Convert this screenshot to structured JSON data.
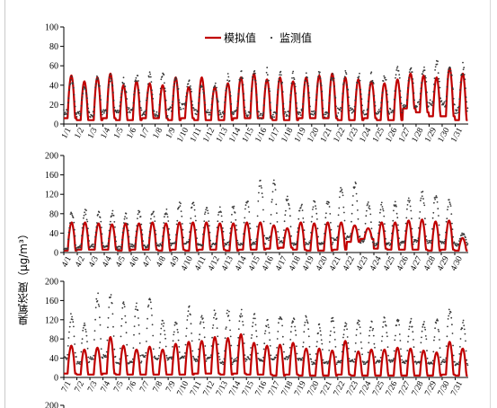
{
  "chart_data": {
    "type": "line",
    "ylabel": "臭氧浓度（μg/m³）",
    "legend": {
      "placement": "top-center",
      "entries": [
        {
          "name": "模拟值",
          "style": "line",
          "color": "#c00000"
        },
        {
          "name": "监测值",
          "style": "dot",
          "color": "#404040"
        }
      ]
    },
    "panels": [
      {
        "ylim": [
          0,
          100
        ],
        "yticks": [
          0,
          20,
          40,
          60,
          80,
          100
        ],
        "categories": [
          "1/1",
          "1/2",
          "1/3",
          "1/4",
          "1/5",
          "1/6",
          "1/7",
          "1/8",
          "1/9",
          "1/10",
          "1/11",
          "1/12",
          "1/13",
          "1/14",
          "1/15",
          "1/16",
          "1/17",
          "1/18",
          "1/19",
          "1/20",
          "1/21",
          "1/22",
          "1/23",
          "1/24",
          "1/25",
          "1/26",
          "1/27",
          "1/28",
          "1/29",
          "1/30",
          "1/31"
        ],
        "series": [
          {
            "name": "模拟值",
            "daily_peak": [
              50,
              44,
              48,
              52,
              40,
              44,
              42,
              40,
              48,
              38,
              48,
              38,
              42,
              48,
              52,
              46,
              48,
              44,
              48,
              50,
              52,
              48,
              46,
              44,
              42,
              46,
              52,
              50,
              48,
              58,
              52
            ],
            "daily_min": [
              6,
              4,
              4,
              6,
              4,
              4,
              6,
              6,
              4,
              6,
              4,
              4,
              4,
              6,
              6,
              6,
              4,
              4,
              6,
              6,
              6,
              4,
              4,
              6,
              4,
              4,
              16,
              12,
              8,
              8,
              4
            ]
          },
          {
            "name": "监测值",
            "daily_peak": [
              50,
              40,
              52,
              52,
              46,
              52,
              52,
              56,
              50,
              44,
              44,
              40,
              52,
              56,
              58,
              56,
              54,
              52,
              52,
              56,
              56,
              54,
              52,
              52,
              50,
              64,
              62,
              60,
              66,
              62,
              62
            ],
            "daily_min": [
              12,
              10,
              10,
              12,
              14,
              14,
              12,
              10,
              16,
              18,
              12,
              12,
              10,
              12,
              10,
              8,
              10,
              10,
              12,
              12,
              10,
              14,
              14,
              12,
              12,
              14,
              20,
              20,
              22,
              20,
              14
            ]
          }
        ]
      },
      {
        "ylim": [
          0,
          200
        ],
        "yticks": [
          0,
          40,
          80,
          120,
          160,
          200
        ],
        "categories": [
          "4/1",
          "4/2",
          "4/3",
          "4/4",
          "4/5",
          "4/6",
          "4/7",
          "4/8",
          "4/9",
          "4/10",
          "4/11",
          "4/12",
          "4/13",
          "4/14",
          "4/15",
          "4/16",
          "4/17",
          "4/18",
          "4/19",
          "4/20",
          "4/21",
          "4/22",
          "4/23",
          "4/24",
          "4/25",
          "4/26",
          "4/27",
          "4/28",
          "4/29",
          "4/30"
        ],
        "series": [
          {
            "name": "模拟值",
            "daily_peak": [
              62,
              62,
              60,
              58,
              60,
              60,
              62,
              60,
              62,
              62,
              62,
              60,
              60,
              62,
              62,
              56,
              50,
              62,
              60,
              62,
              62,
              56,
              50,
              62,
              62,
              66,
              68,
              64,
              66,
              30
            ],
            "daily_min": [
              4,
              6,
              6,
              6,
              4,
              6,
              6,
              4,
              6,
              4,
              6,
              6,
              4,
              6,
              6,
              8,
              10,
              6,
              4,
              4,
              6,
              22,
              28,
              8,
              6,
              6,
              6,
              4,
              6,
              4
            ]
          },
          {
            "name": "监测值",
            "daily_peak": [
              88,
              92,
              86,
              90,
              84,
              88,
              92,
              90,
              108,
              112,
              96,
              96,
              102,
              114,
              158,
              150,
              120,
              104,
              116,
              112,
              140,
              150,
              108,
              104,
              106,
              118,
              130,
              126,
              114,
              40
            ],
            "daily_min": [
              8,
              12,
              14,
              12,
              10,
              14,
              12,
              16,
              18,
              20,
              14,
              16,
              18,
              16,
              20,
              28,
              22,
              18,
              20,
              18,
              28,
              34,
              22,
              16,
              18,
              20,
              24,
              22,
              20,
              16
            ]
          }
        ]
      },
      {
        "ylim": [
          0,
          200
        ],
        "yticks": [
          0,
          40,
          80,
          120,
          160,
          200
        ],
        "categories": [
          "7/1",
          "7/2",
          "7/3",
          "7/4",
          "7/5",
          "7/6",
          "7/7",
          "7/8",
          "7/9",
          "7/10",
          "7/11",
          "7/12",
          "7/13",
          "7/14",
          "7/15",
          "7/16",
          "7/17",
          "7/18",
          "7/19",
          "7/20",
          "7/21",
          "7/22",
          "7/23",
          "7/24",
          "7/25",
          "7/26",
          "7/27",
          "7/28",
          "7/29",
          "7/30",
          "7/31"
        ],
        "series": [
          {
            "name": "模拟值",
            "daily_peak": [
              66,
              58,
              62,
              84,
              66,
              58,
              64,
              58,
              70,
              74,
              76,
              84,
              82,
              90,
              72,
              66,
              68,
              72,
              60,
              60,
              56,
              76,
              54,
              58,
              58,
              62,
              60,
              56,
              52,
              74,
              60
            ],
            "daily_min": [
              8,
              6,
              6,
              8,
              6,
              6,
              6,
              6,
              6,
              6,
              8,
              8,
              6,
              8,
              6,
              6,
              4,
              6,
              4,
              4,
              4,
              6,
              4,
              4,
              4,
              4,
              4,
              4,
              4,
              6,
              4
            ]
          },
          {
            "name": "监测值",
            "daily_peak": [
              136,
              120,
              178,
              182,
              160,
              160,
              176,
              120,
              124,
              150,
              132,
              140,
              144,
              146,
              132,
              122,
              138,
              128,
              132,
              110,
              130,
              116,
              126,
              120,
              130,
              128,
              126,
              120,
              128,
              150,
              120
            ],
            "daily_min": [
              40,
              30,
              40,
              44,
              30,
              32,
              44,
              38,
              40,
              42,
              36,
              40,
              30,
              36,
              40,
              36,
              40,
              40,
              38,
              30,
              30,
              32,
              34,
              30,
              34,
              34,
              32,
              30,
              30,
              34,
              28
            ]
          }
        ]
      },
      {
        "ylim": [
          0,
          200
        ],
        "yticks": [
          200
        ]
      }
    ]
  }
}
